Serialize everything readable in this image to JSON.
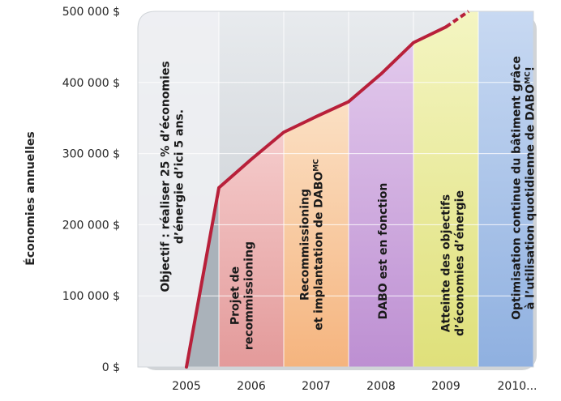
{
  "chart_data": {
    "type": "line",
    "ylabel": "Économies annuelles",
    "xlabel": "",
    "ylim": [
      0,
      500000
    ],
    "y_ticks": [
      {
        "value": 0,
        "label": "0 $"
      },
      {
        "value": 100000,
        "label": "100 000 $"
      },
      {
        "value": 200000,
        "label": "200 000 $"
      },
      {
        "value": 300000,
        "label": "300 000 $"
      },
      {
        "value": 400000,
        "label": "400 000 $"
      },
      {
        "value": 500000,
        "label": "500 000 $"
      }
    ],
    "x_ticks": [
      "2005",
      "2006",
      "2007",
      "2008",
      "2009",
      "2010..."
    ],
    "grid": true,
    "series": [
      {
        "color": "#b8203a",
        "points": [
          {
            "x": 2005.0,
            "y": 0
          },
          {
            "x": 2005.5,
            "y": 252000
          },
          {
            "x": 2006.0,
            "y": 292000
          },
          {
            "x": 2006.5,
            "y": 330000
          },
          {
            "x": 2007.0,
            "y": 352000
          },
          {
            "x": 2007.5,
            "y": 373000
          },
          {
            "x": 2008.0,
            "y": 412000
          },
          {
            "x": 2008.5,
            "y": 456000
          },
          {
            "x": 2009.0,
            "y": 478000
          }
        ],
        "dashed_extension": [
          {
            "x": 2009.0,
            "y": 478000
          },
          {
            "x": 2009.35,
            "y": 500000
          }
        ]
      }
    ],
    "phases": [
      {
        "id": "objectif",
        "x0": 2004.25,
        "x1": 2005.5,
        "color_top": "#e6eaf0",
        "color_bottom": "#b9c2cc",
        "lines": [
          "Objectif : réaliser  25 % d’économies",
          "d’énergie d’ici 5 ans."
        ],
        "sup": ""
      },
      {
        "id": "projet",
        "x0": 2005.5,
        "x1": 2006.5,
        "color_top": "#f5cccc",
        "color_bottom": "#e39a9a",
        "lines": [
          "Projet de",
          "recommissioning"
        ],
        "sup": ""
      },
      {
        "id": "recommissioning",
        "x0": 2006.5,
        "x1": 2007.5,
        "color_top": "#fbe0c4",
        "color_bottom": "#f5b47e",
        "lines": [
          "Recommissioning",
          "et implantation de DABO"
        ],
        "sup": "MC"
      },
      {
        "id": "dabo",
        "x0": 2007.5,
        "x1": 2008.5,
        "color_top": "#e2c9ec",
        "color_bottom": "#bd8fd2",
        "lines": [
          "DABO est en fonction"
        ],
        "sup": ""
      },
      {
        "id": "atteinte",
        "x0": 2008.5,
        "x1": 2009.5,
        "color_top": "#f4f5c2",
        "color_bottom": "#dfe07a",
        "lines": [
          "Atteinte des objectifs",
          "d’économies d’énergie"
        ],
        "sup": ""
      },
      {
        "id": "optimisation",
        "x0": 2009.5,
        "x1": 2010.35,
        "color_top": "#c8d9f2",
        "color_bottom": "#8fb0e0",
        "lines": [
          "Optimisation continue du bâtiment grâce",
          "à  l’utilisation quotidienne de DABO"
        ],
        "sup": "MC",
        "suffix": "!"
      }
    ]
  }
}
